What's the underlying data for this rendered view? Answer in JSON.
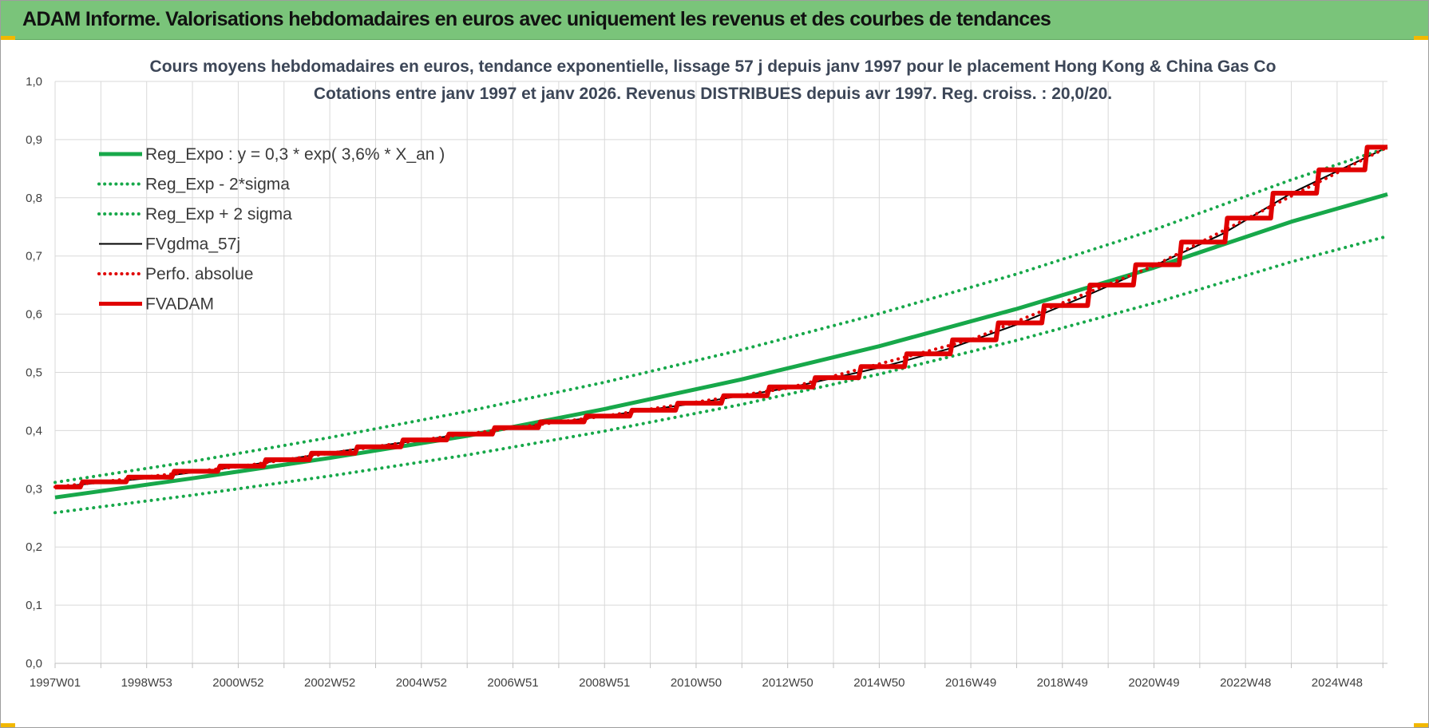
{
  "header": {
    "title": "ADAM Informe. Valorisations hebdomadaires en euros avec uniquement les revenus et des courbes de tendances"
  },
  "colors": {
    "header_bg": "#7ac47a",
    "trend": "#17a84a",
    "fv": "#e00000",
    "gdma": "#000000"
  },
  "chart_data": {
    "type": "line",
    "title": "Cours moyens hebdomadaires en euros, tendance exponentielle, lissage 57 j depuis janv 1997  pour le placement Hong Kong & China Gas Co",
    "subtitle": "Cotations entre janv 1997 et janv 2026. Revenus DISTRIBUES depuis avr 1997.  Reg. croiss. : 20,0/20.",
    "xlabel": "",
    "ylabel": "",
    "ylim": [
      0,
      1.0
    ],
    "xlim": [
      1997.0,
      2026.1
    ],
    "yticks": [
      "0,0",
      "0,1",
      "0,2",
      "0,3",
      "0,4",
      "0,5",
      "0,6",
      "0,7",
      "0,8",
      "0,9",
      "1,0"
    ],
    "x_tick_labels": [
      {
        "t": 1997.0,
        "label": "1997W01"
      },
      {
        "t": 1999.0,
        "label": "1998W53"
      },
      {
        "t": 2001.0,
        "label": "2000W52"
      },
      {
        "t": 2003.0,
        "label": "2002W52"
      },
      {
        "t": 2005.0,
        "label": "2004W52"
      },
      {
        "t": 2007.0,
        "label": "2006W51"
      },
      {
        "t": 2009.0,
        "label": "2008W51"
      },
      {
        "t": 2011.0,
        "label": "2010W50"
      },
      {
        "t": 2013.0,
        "label": "2012W50"
      },
      {
        "t": 2015.0,
        "label": "2014W50"
      },
      {
        "t": 2017.0,
        "label": "2016W49"
      },
      {
        "t": 2019.0,
        "label": "2018W49"
      },
      {
        "t": 2021.0,
        "label": "2020W49"
      },
      {
        "t": 2023.0,
        "label": "2022W48"
      },
      {
        "t": 2025.0,
        "label": "2024W48"
      }
    ],
    "grid": true,
    "legend_position": "top-left",
    "series": [
      {
        "name": "Reg_Expo : y = 0,3 * exp( 3,6% *  X_an )",
        "style": "solid-thick",
        "color": "#17a84a",
        "x": [
          1997.0,
          2000.0,
          2003.0,
          2006.0,
          2009.0,
          2012.0,
          2015.0,
          2018.0,
          2021.0,
          2024.0,
          2026.1
        ],
        "y": [
          0.285,
          0.318,
          0.353,
          0.391,
          0.437,
          0.488,
          0.545,
          0.609,
          0.68,
          0.759,
          0.806
        ]
      },
      {
        "name": "Reg_Exp - 2*sigma",
        "style": "dotted",
        "color": "#17a84a",
        "x": [
          1997.0,
          2000.0,
          2003.0,
          2006.0,
          2009.0,
          2012.0,
          2015.0,
          2018.0,
          2021.0,
          2024.0,
          2026.1
        ],
        "y": [
          0.259,
          0.289,
          0.322,
          0.358,
          0.399,
          0.445,
          0.497,
          0.555,
          0.619,
          0.69,
          0.734
        ]
      },
      {
        "name": "Reg_Exp + 2 sigma",
        "style": "dotted",
        "color": "#17a84a",
        "x": [
          1997.0,
          2000.0,
          2003.0,
          2006.0,
          2009.0,
          2012.0,
          2015.0,
          2018.0,
          2021.0,
          2024.0,
          2026.1
        ],
        "y": [
          0.311,
          0.347,
          0.388,
          0.433,
          0.483,
          0.539,
          0.601,
          0.669,
          0.745,
          0.831,
          0.886
        ]
      },
      {
        "name": "FVgdma_57j",
        "style": "solid",
        "color": "#000000",
        "x": [
          1997.0,
          1999.0,
          2001.0,
          2003.0,
          2005.0,
          2007.0,
          2009.0,
          2011.0,
          2013.0,
          2015.0,
          2016.5,
          2018.0,
          2019.5,
          2021.0,
          2022.5,
          2024.0,
          2026.1
        ],
        "y": [
          0.303,
          0.318,
          0.338,
          0.362,
          0.384,
          0.405,
          0.425,
          0.447,
          0.473,
          0.508,
          0.54,
          0.582,
          0.631,
          0.683,
          0.738,
          0.808,
          0.887
        ]
      },
      {
        "name": "Perfo. absolue",
        "style": "dotted",
        "color": "#e00000",
        "x": [
          1997.0,
          2001.0,
          2005.0,
          2009.0,
          2013.0,
          2017.0,
          2021.0,
          2026.1
        ],
        "y": [
          0.303,
          0.338,
          0.384,
          0.425,
          0.473,
          0.556,
          0.683,
          0.887
        ]
      },
      {
        "name": "FVADAM",
        "style": "steps-thick",
        "color": "#e00000",
        "x": [
          1997.0,
          1998.0,
          1999.0,
          2000.0,
          2001.0,
          2002.0,
          2003.0,
          2004.0,
          2005.0,
          2006.0,
          2007.0,
          2008.0,
          2009.0,
          2010.0,
          2011.0,
          2012.0,
          2013.0,
          2014.0,
          2015.0,
          2016.0,
          2017.0,
          2018.0,
          2019.0,
          2020.0,
          2021.0,
          2022.0,
          2023.0,
          2024.0,
          2025.0,
          2026.1
        ],
        "y": [
          0.303,
          0.312,
          0.32,
          0.33,
          0.339,
          0.35,
          0.361,
          0.372,
          0.384,
          0.394,
          0.405,
          0.415,
          0.425,
          0.435,
          0.447,
          0.46,
          0.475,
          0.491,
          0.51,
          0.532,
          0.556,
          0.585,
          0.615,
          0.65,
          0.685,
          0.724,
          0.765,
          0.808,
          0.848,
          0.887
        ]
      }
    ]
  }
}
